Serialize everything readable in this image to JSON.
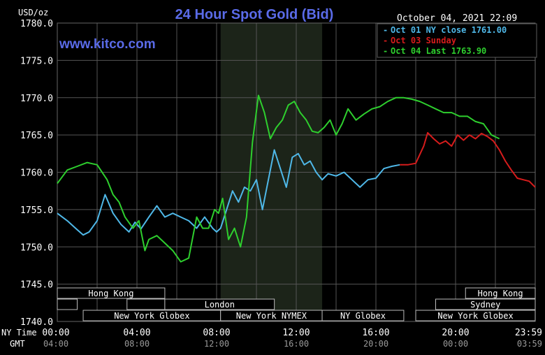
{
  "chart_data": {
    "type": "line",
    "title": "24 Hour Spot Gold (Bid)",
    "ylabel": "USD/oz",
    "watermark": "www.kitco.com",
    "timestamp": "October 04, 2021 22:09",
    "ylim": [
      1740,
      1780
    ],
    "xlim": [
      0,
      24
    ],
    "yticks": [
      "1780.0",
      "1775.0",
      "1770.0",
      "1765.0",
      "1760.0",
      "1755.0",
      "1750.0",
      "1745.0",
      "1740.0"
    ],
    "ytick_values": [
      1780,
      1775,
      1770,
      1765,
      1760,
      1755,
      1750,
      1745,
      1740
    ],
    "x_row_labels": [
      "NY Time",
      "GMT"
    ],
    "xticks_ny": [
      "00:00",
      "04:00",
      "08:00",
      "12:00",
      "16:00",
      "20:00",
      "23:59"
    ],
    "xticks_gmt": [
      "04:00",
      "08:00",
      "12:00",
      "16:00",
      "20:00",
      "00:00",
      "03:59"
    ],
    "xtick_hours": [
      0,
      4,
      8,
      12,
      16,
      20,
      24
    ],
    "grid": true,
    "legend_position": "top-right",
    "shaded_session": {
      "from": 8.2,
      "to": 13.3,
      "color": "#1c2419"
    },
    "sessions": [
      {
        "name": "Hong Kong",
        "from": 0,
        "to": 5.4,
        "row": 1
      },
      {
        "name": "",
        "from": 0,
        "to": 1,
        "row": 2
      },
      {
        "name": "",
        "from": 3.5,
        "to": 5.4,
        "row": 2
      },
      {
        "name": "London",
        "from": 5.4,
        "to": 10.9,
        "row": 2
      },
      {
        "name": "New York Globex",
        "from": 1.3,
        "to": 8.2,
        "row": 3
      },
      {
        "name": "New York NYMEX",
        "from": 8.2,
        "to": 13.3,
        "row": 3
      },
      {
        "name": "NY Globex",
        "from": 13.3,
        "to": 17.4,
        "row": 3
      },
      {
        "name": "Hong Kong",
        "from": 20.5,
        "to": 24,
        "row": 1
      },
      {
        "name": "Sydney",
        "from": 19,
        "to": 24,
        "row": 2
      },
      {
        "name": "New York Globex",
        "from": 18,
        "to": 24,
        "row": 3
      }
    ],
    "series": [
      {
        "name": "Oct 01 NY close 1761.00",
        "color": "#4fb8e8",
        "x": [
          0,
          0.5,
          1,
          1.3,
          1.6,
          2,
          2.4,
          2.8,
          3.2,
          3.6,
          3.9,
          4.2,
          4.6,
          5,
          5.4,
          5.8,
          6.2,
          6.6,
          7,
          7.4,
          7.8,
          8,
          8.2,
          8.5,
          8.8,
          9.1,
          9.4,
          9.7,
          10,
          10.3,
          10.6,
          10.9,
          11.2,
          11.5,
          11.8,
          12.1,
          12.4,
          12.7,
          13,
          13.3,
          13.6,
          14,
          14.4,
          14.8,
          15.2,
          15.6,
          16,
          16.4,
          16.8,
          17.2
        ],
        "values": [
          1754.5,
          1753.5,
          1752.3,
          1751.6,
          1752.0,
          1753.5,
          1757.0,
          1754.5,
          1753.0,
          1752.0,
          1753.3,
          1752.4,
          1754.0,
          1755.5,
          1754.0,
          1754.5,
          1754.0,
          1753.5,
          1752.5,
          1754.0,
          1752.5,
          1752.0,
          1752.5,
          1755.0,
          1757.5,
          1756.0,
          1758.0,
          1757.5,
          1759.0,
          1755.0,
          1759.0,
          1763.0,
          1760.5,
          1758.0,
          1762.0,
          1762.5,
          1761.0,
          1761.5,
          1760.0,
          1759.0,
          1759.8,
          1759.5,
          1760.0,
          1759.0,
          1758.0,
          1759.0,
          1759.2,
          1760.5,
          1760.8,
          1761.0
        ]
      },
      {
        "name": "Oct 03 Sunday",
        "color": "#d61c1c",
        "x": [
          17.2,
          17.6,
          18,
          18.4,
          18.6,
          18.9,
          19.2,
          19.5,
          19.8,
          20.1,
          20.4,
          20.7,
          21,
          21.3,
          21.6,
          21.9,
          22.2,
          22.5,
          22.8,
          23.1,
          23.4,
          23.7,
          24
        ],
        "values": [
          1761.0,
          1761.0,
          1761.2,
          1763.5,
          1765.3,
          1764.5,
          1763.8,
          1764.2,
          1763.5,
          1765.0,
          1764.3,
          1765.0,
          1764.5,
          1765.2,
          1764.8,
          1764.2,
          1763.0,
          1761.5,
          1760.3,
          1759.2,
          1759.0,
          1758.8,
          1758.0
        ]
      },
      {
        "name": "Oct 04 Last 1763.90",
        "color": "#2ecf2e",
        "x": [
          0,
          0.5,
          1,
          1.5,
          2,
          2.5,
          2.8,
          3.1,
          3.4,
          3.8,
          4.1,
          4.4,
          4.6,
          5,
          5.4,
          5.8,
          6.2,
          6.6,
          7,
          7.3,
          7.6,
          7.9,
          8.1,
          8.3,
          8.6,
          8.9,
          9.2,
          9.5,
          9.8,
          10.1,
          10.4,
          10.7,
          11,
          11.3,
          11.6,
          11.9,
          12.2,
          12.5,
          12.8,
          13.1,
          13.4,
          13.7,
          14,
          14.3,
          14.6,
          15,
          15.4,
          15.8,
          16.2,
          16.6,
          17,
          17.4,
          17.8,
          18.2,
          18.6,
          19,
          19.4,
          19.8,
          20.2,
          20.6,
          21,
          21.4,
          21.8,
          22.2
        ],
        "values": [
          1758.5,
          1760.3,
          1760.8,
          1761.3,
          1761.0,
          1759.0,
          1757.0,
          1756.0,
          1754.0,
          1752.5,
          1753.5,
          1749.5,
          1751.0,
          1751.5,
          1750.5,
          1749.5,
          1748.0,
          1748.5,
          1754.0,
          1752.5,
          1752.5,
          1755.0,
          1754.5,
          1756.5,
          1751.0,
          1752.5,
          1750.0,
          1754.0,
          1764.0,
          1770.3,
          1768.0,
          1764.5,
          1766.0,
          1767.0,
          1769.0,
          1769.5,
          1768.0,
          1767.0,
          1765.5,
          1765.3,
          1766.0,
          1767.0,
          1765.0,
          1766.5,
          1768.5,
          1767.0,
          1767.8,
          1768.5,
          1768.8,
          1769.5,
          1770.0,
          1770.0,
          1769.8,
          1769.5,
          1769.0,
          1768.5,
          1768.0,
          1768.0,
          1767.5,
          1767.5,
          1766.8,
          1766.5,
          1765.0,
          1764.5
        ]
      }
    ]
  }
}
